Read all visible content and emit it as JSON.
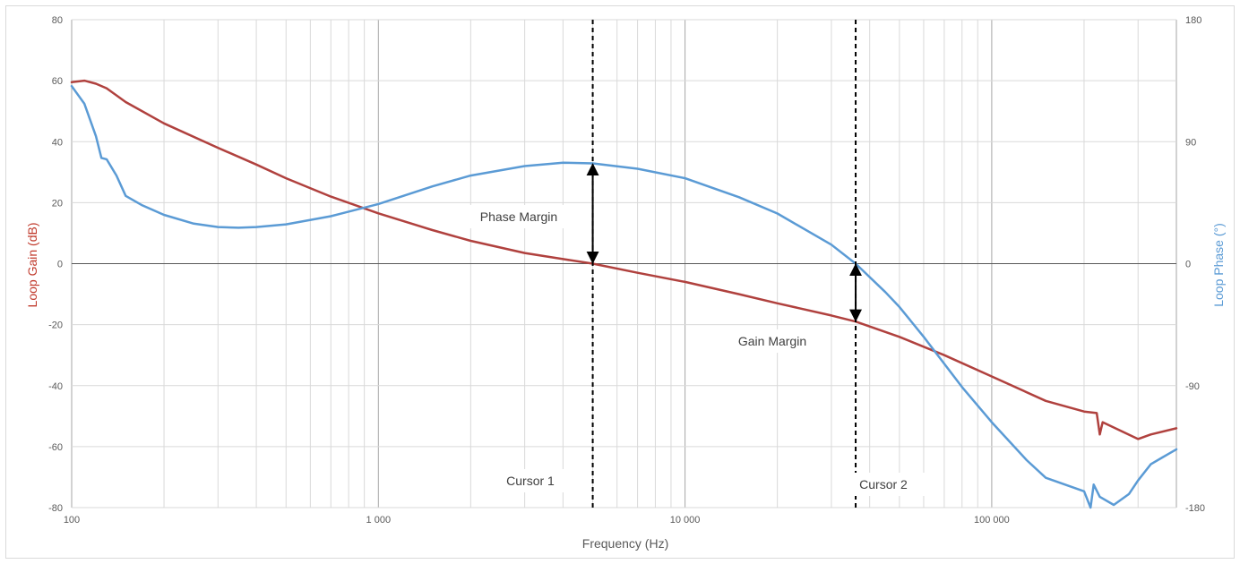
{
  "chart_data": {
    "type": "line",
    "xlabel": "Frequency (Hz)",
    "ylabel_left": "Loop Gain (dB)",
    "ylabel_right": "Loop Phase (°)",
    "x_scale": "log",
    "xlim": [
      100,
      400000
    ],
    "ylim_left": [
      -80,
      80
    ],
    "ylim_right": [
      -180,
      180
    ],
    "x_ticks": [
      100,
      1000,
      10000,
      100000
    ],
    "x_tick_labels": [
      "100",
      "1 000",
      "10 000",
      "100 000"
    ],
    "y_left_ticks": [
      80,
      60,
      40,
      20,
      0,
      -20,
      -40,
      -60,
      -80
    ],
    "y_right_ticks": [
      180,
      90,
      0,
      -90,
      -180
    ],
    "grid": true,
    "colors": {
      "gain": "#b0413e",
      "phase": "#5b9bd5",
      "cursor": "#000000"
    },
    "series": [
      {
        "axis": "left",
        "x": [
          100,
          110,
          120,
          130,
          150,
          200,
          300,
          400,
          500,
          700,
          1000,
          1500,
          2000,
          3000,
          4000,
          5000,
          7000,
          10000,
          15000,
          20000,
          30000,
          36000,
          50000,
          70000,
          100000,
          150000,
          200000,
          220000,
          225000,
          230000,
          300000,
          330000,
          400000
        ],
        "values": [
          59.5,
          60,
          59,
          57.5,
          53,
          46,
          38,
          32.5,
          28,
          22,
          16.5,
          11,
          7.5,
          3.5,
          1.5,
          0,
          -3,
          -6,
          -10,
          -13,
          -17,
          -19,
          -24,
          -30,
          -37,
          -45,
          -48.5,
          -49,
          -56,
          -52,
          -57.5,
          -56,
          -54
        ]
      },
      {
        "axis": "right",
        "x": [
          100,
          110,
          120,
          125,
          130,
          140,
          150,
          170,
          200,
          250,
          300,
          350,
          400,
          500,
          700,
          1000,
          1500,
          2000,
          3000,
          4000,
          5000,
          7000,
          10000,
          15000,
          20000,
          30000,
          36000,
          45000,
          50000,
          60000,
          80000,
          100000,
          130000,
          150000,
          200000,
          210000,
          215000,
          225000,
          250000,
          280000,
          300000,
          330000,
          360000,
          400000
        ],
        "values": [
          131,
          118,
          94,
          78,
          77,
          65,
          50,
          43,
          36,
          29.5,
          27,
          26.5,
          27,
          29,
          35,
          44,
          57,
          65,
          72,
          74.5,
          74,
          70,
          63,
          49,
          37,
          14,
          0,
          -21,
          -32,
          -54,
          -91,
          -117,
          -145,
          -158,
          -168,
          -180,
          -163,
          -172,
          -178,
          -170,
          -160,
          -148,
          -143,
          -137
        ]
      }
    ],
    "annotations": {
      "cursor1_label": "Cursor 1",
      "cursor2_label": "Cursor 2",
      "phase_margin_label": "Phase Margin",
      "gain_margin_label": "Gain Margin",
      "cursor1_x": 5000,
      "cursor2_x": 36000,
      "phase_margin_top_phase": 74,
      "gain_margin_bottom_db": -19
    }
  }
}
